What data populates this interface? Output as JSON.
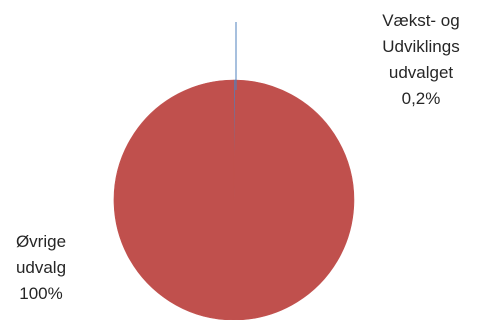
{
  "chart_data": {
    "type": "pie",
    "slices": [
      {
        "label_lines": [
          "Vækst- og",
          "Udviklings",
          "udvalget"
        ],
        "value_text": "0,2%",
        "value": 0.2,
        "color": "#4f81bd"
      },
      {
        "label_lines": [
          "Øvrige",
          "udvalg"
        ],
        "value_text": "100%",
        "value": 99.8,
        "color": "#c0504d"
      }
    ],
    "legend": "none",
    "data_labels": "outside with leader line"
  }
}
